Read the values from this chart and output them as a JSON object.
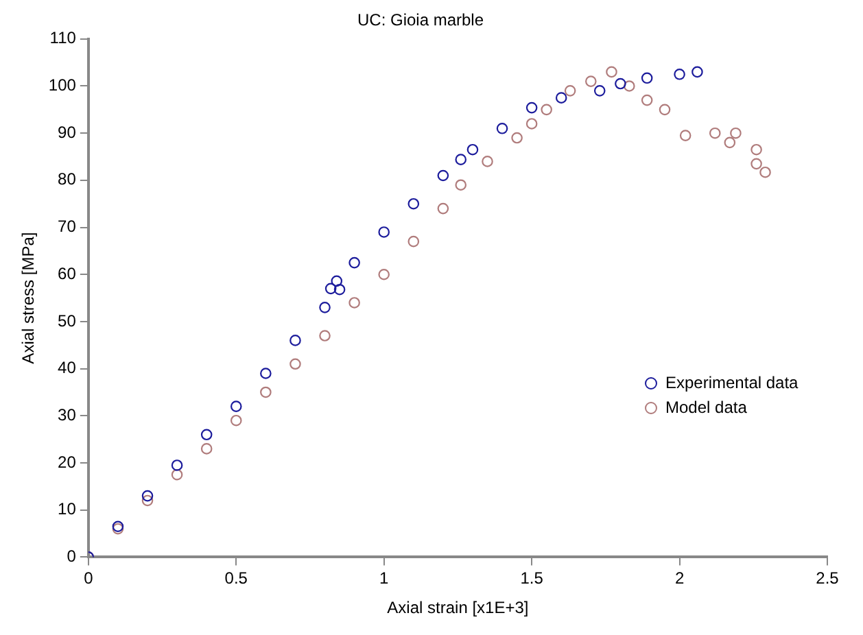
{
  "chart_data": {
    "type": "scatter",
    "title": "UC: Gioia marble",
    "xlabel": "Axial strain [x1E+3]",
    "ylabel": "Axial stress [MPa]",
    "xlim": [
      0,
      2.5
    ],
    "xticks": [
      0,
      0.5,
      1,
      1.5,
      2,
      2.5
    ],
    "ylim": [
      0,
      110
    ],
    "yticks": [
      0,
      10,
      20,
      30,
      40,
      50,
      60,
      70,
      80,
      90,
      100,
      110
    ],
    "grid": false,
    "legend": "right",
    "marker": "circle",
    "series": [
      {
        "name": "Experimental data",
        "color": "#1c1c9c",
        "x": [
          0,
          0.1,
          0.2,
          0.3,
          0.4,
          0.5,
          0.6,
          0.7,
          0.8,
          0.82,
          0.84,
          0.85,
          0.9,
          1.0,
          1.1,
          1.2,
          1.26,
          1.3,
          1.4,
          1.5,
          1.6,
          1.73,
          1.8,
          1.89,
          2.0,
          2.06
        ],
        "values": [
          0,
          6.5,
          13,
          19.5,
          26,
          32,
          39,
          46,
          53,
          57,
          58.6,
          56.8,
          62.5,
          69,
          75,
          81,
          84.4,
          86.5,
          91,
          95.4,
          97.5,
          99,
          100.5,
          101.7,
          102.5,
          103
        ]
      },
      {
        "name": "Model data",
        "color": "#b07c7c",
        "x": [
          0,
          0.1,
          0.2,
          0.3,
          0.4,
          0.5,
          0.6,
          0.7,
          0.8,
          0.9,
          1.0,
          1.1,
          1.2,
          1.26,
          1.35,
          1.45,
          1.5,
          1.55,
          1.63,
          1.7,
          1.77,
          1.83,
          1.89,
          1.95,
          2.02,
          2.12,
          2.17,
          2.19,
          2.26,
          2.26,
          2.29
        ],
        "values": [
          0,
          6,
          12,
          17.5,
          23,
          29,
          35,
          41,
          47,
          54,
          60,
          67,
          74,
          79,
          84,
          89,
          92,
          95,
          99,
          101,
          103,
          100,
          97,
          95,
          89.5,
          90,
          88,
          90,
          86.5,
          83.5,
          81.7
        ]
      }
    ]
  }
}
